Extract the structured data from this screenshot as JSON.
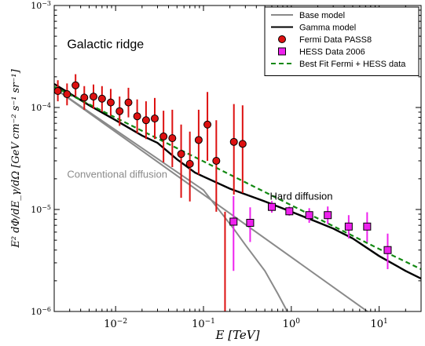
{
  "chart_data": {
    "type": "scatter",
    "title": "",
    "xlabel": "E [TeV]",
    "ylabel": "E² dΦ/dE_γ/dΩ [GeV cm⁻² s⁻¹ sr⁻¹]",
    "x_scale": "log",
    "y_scale": "log",
    "xlim": [
      0.002,
      30
    ],
    "ylim": [
      1e-06,
      0.001
    ],
    "x_ticks": [
      {
        "value": 0.01,
        "mant": "10",
        "exp": "−2"
      },
      {
        "value": 0.1,
        "mant": "10",
        "exp": "−1"
      },
      {
        "value": 1,
        "mant": "10",
        "exp": "0"
      },
      {
        "value": 10,
        "mant": "10",
        "exp": "1"
      }
    ],
    "y_ticks": [
      {
        "value": 1e-06,
        "mant": "10",
        "exp": "−6"
      },
      {
        "value": 1e-05,
        "mant": "10",
        "exp": "−5"
      },
      {
        "value": 0.0001,
        "mant": "10",
        "exp": "−4"
      },
      {
        "value": 0.001,
        "mant": "10",
        "exp": "−3"
      }
    ],
    "annotations": [
      {
        "text": "Galactic ridge",
        "x": 0.0028,
        "y": 0.00038,
        "size": 16,
        "color": "#000000"
      },
      {
        "text": "Conventional diffusion",
        "x": 0.0028,
        "y": 2.05e-05,
        "size": 13,
        "color": "#8a8a8a"
      },
      {
        "text": "Hard diffusion",
        "x": 0.57,
        "y": 1.25e-05,
        "size": 13,
        "color": "#000000"
      }
    ],
    "legend": {
      "position": "top-right",
      "entries": [
        {
          "label": "Base model",
          "kind": "line",
          "color": "#8a8a8a",
          "dash": "none"
        },
        {
          "label": "Gamma model",
          "kind": "line",
          "color": "#000000",
          "dash": "none"
        },
        {
          "label": "Fermi Data PASS8",
          "kind": "circle",
          "color": "#dd1111"
        },
        {
          "label": "HESS Data 2006",
          "kind": "square",
          "color": "#ee22ee"
        },
        {
          "label": "Best Fit Fermi + HESS data",
          "kind": "line",
          "color": "#118811",
          "dash": "6,4"
        }
      ]
    },
    "series": [
      {
        "name": "Base model",
        "kind": "line",
        "color": "#8a8a8a",
        "width": 2,
        "points": [
          [
            0.002,
            0.000155
          ],
          [
            8,
            9.5e-07
          ]
        ]
      },
      {
        "name": "Conventional diffusion",
        "kind": "line",
        "color": "#8a8a8a",
        "width": 2,
        "points": [
          [
            0.002,
            0.000155
          ],
          [
            0.1,
            1.55e-05
          ],
          [
            0.22,
            6.5e-06
          ],
          [
            0.3,
            4.5e-06
          ],
          [
            0.5,
            2.5e-06
          ],
          [
            0.7,
            1.5e-06
          ],
          [
            0.9,
            1e-06
          ]
        ]
      },
      {
        "name": "Gamma model",
        "kind": "line",
        "color": "#000000",
        "width": 2.4,
        "points": [
          [
            0.002,
            0.00017
          ],
          [
            0.005,
            0.000105
          ],
          [
            0.01,
            7.5e-05
          ],
          [
            0.02,
            5.3e-05
          ],
          [
            0.03,
            4.5e-05
          ],
          [
            0.05,
            3.1e-05
          ],
          [
            0.08,
            2.3e-05
          ],
          [
            0.1,
            2.1e-05
          ],
          [
            0.2,
            1.6e-05
          ],
          [
            0.5,
            1.2e-05
          ],
          [
            1,
            9.5e-06
          ],
          [
            2,
            7.5e-06
          ],
          [
            3,
            6.5e-06
          ],
          [
            5,
            5.2e-06
          ],
          [
            10,
            3.5e-06
          ],
          [
            20,
            2.5e-06
          ],
          [
            30,
            2.1e-06
          ]
        ]
      },
      {
        "name": "Best Fit Fermi + HESS data",
        "kind": "line",
        "color": "#118811",
        "width": 2.2,
        "dash": "6,4",
        "points": [
          [
            0.002,
            0.00016
          ],
          [
            0.01,
            7.95e-05
          ],
          [
            0.1,
            2.96e-05
          ],
          [
            1,
            1.1e-05
          ],
          [
            10,
            4.1e-06
          ],
          [
            30,
            2.6e-06
          ]
        ]
      },
      {
        "name": "Fermi Data PASS8",
        "kind": "circle",
        "color": "#dd1111",
        "points": [
          {
            "x": 0.0022,
            "y": 0.000145,
            "lo": 0.000115,
            "hi": 0.000185
          },
          {
            "x": 0.0028,
            "y": 0.000135,
            "lo": 0.000105,
            "hi": 0.000172
          },
          {
            "x": 0.0035,
            "y": 0.000165,
            "lo": 0.000128,
            "hi": 0.000212
          },
          {
            "x": 0.0044,
            "y": 0.000125,
            "lo": 9.5e-05,
            "hi": 0.000162
          },
          {
            "x": 0.0056,
            "y": 0.000128,
            "lo": 9.7e-05,
            "hi": 0.000168
          },
          {
            "x": 0.007,
            "y": 0.000122,
            "lo": 9.1e-05,
            "hi": 0.000162
          },
          {
            "x": 0.0088,
            "y": 0.000112,
            "lo": 8.3e-05,
            "hi": 0.000152
          },
          {
            "x": 0.0111,
            "y": 9.2e-05,
            "lo": 6.6e-05,
            "hi": 0.000128
          },
          {
            "x": 0.014,
            "y": 0.000112,
            "lo": 8e-05,
            "hi": 0.000156
          },
          {
            "x": 0.0176,
            "y": 8.2e-05,
            "lo": 5.6e-05,
            "hi": 0.00012
          },
          {
            "x": 0.0222,
            "y": 7.5e-05,
            "lo": 4.9e-05,
            "hi": 0.000115
          },
          {
            "x": 0.0279,
            "y": 7.8e-05,
            "lo": 4.9e-05,
            "hi": 0.000124
          },
          {
            "x": 0.0351,
            "y": 5.2e-05,
            "lo": 2.9e-05,
            "hi": 9.3e-05
          },
          {
            "x": 0.0442,
            "y": 5e-05,
            "lo": 2.6e-05,
            "hi": 9.5e-05
          },
          {
            "x": 0.0557,
            "y": 3.5e-05,
            "lo": 1.3e-05,
            "hi": 6.8e-05
          },
          {
            "x": 0.07,
            "y": 2.8e-05,
            "lo": 1.2e-05,
            "hi": 5.8e-05
          },
          {
            "x": 0.0882,
            "y": 4.8e-05,
            "lo": 2.2e-05,
            "hi": 9.5e-05
          },
          {
            "x": 0.111,
            "y": 6.8e-05,
            "lo": 3e-05,
            "hi": 0.000142
          },
          {
            "x": 0.14,
            "y": 3e-05,
            "lo": 9.5e-06,
            "hi": 7.5e-05
          },
          {
            "x": 0.176,
            "y": null,
            "lo": 1e-06,
            "hi": 9.5e-06
          },
          {
            "x": 0.222,
            "y": 4.6e-05,
            "lo": 1.4e-05,
            "hi": 0.000108
          },
          {
            "x": 0.279,
            "y": 4.4e-05,
            "lo": 1.45e-05,
            "hi": 0.000105
          }
        ]
      },
      {
        "name": "HESS Data 2006",
        "kind": "square",
        "color": "#ee22ee",
        "points": [
          {
            "x": 0.22,
            "y": 7.6e-06,
            "lo": 2.5e-06,
            "hi": 1.35e-05
          },
          {
            "x": 0.34,
            "y": 7.4e-06,
            "lo": 4.8e-06,
            "hi": 1.05e-05
          },
          {
            "x": 0.6,
            "y": 1.06e-05,
            "lo": 9.3e-06,
            "hi": 1.21e-05
          },
          {
            "x": 0.95,
            "y": 9.6e-06,
            "lo": 8.7e-06,
            "hi": 1.07e-05
          },
          {
            "x": 1.6,
            "y": 8.8e-06,
            "lo": 7.4e-06,
            "hi": 1.03e-05
          },
          {
            "x": 2.6,
            "y": 8.8e-06,
            "lo": 7.2e-06,
            "hi": 1.07e-05
          },
          {
            "x": 4.5,
            "y": 6.8e-06,
            "lo": 5.2e-06,
            "hi": 8.8e-06
          },
          {
            "x": 7.3,
            "y": 6.8e-06,
            "lo": 4.8e-06,
            "hi": 9.4e-06
          },
          {
            "x": 12.5,
            "y": 4e-06,
            "lo": 2.6e-06,
            "hi": 5.8e-06
          }
        ]
      }
    ]
  }
}
